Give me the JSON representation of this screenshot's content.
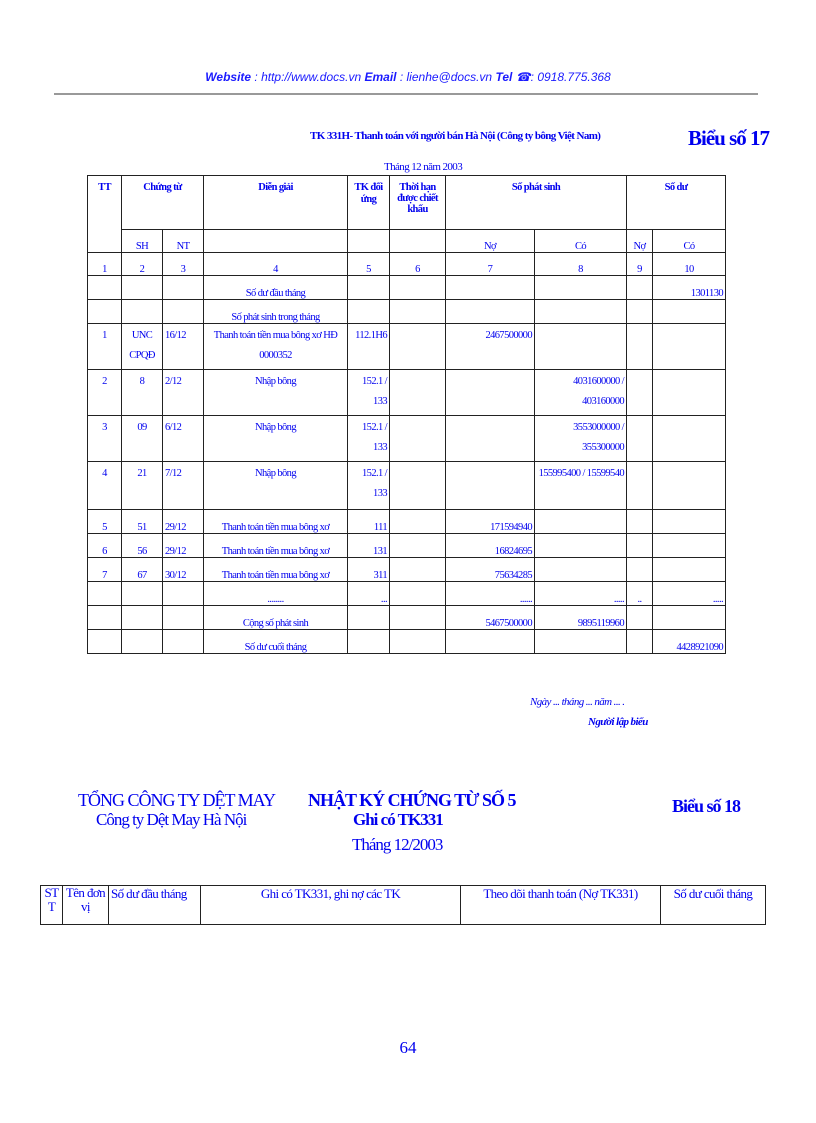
{
  "header": {
    "website_label": "Website",
    "website": "http://www.docs.vn",
    "email_label": "Email",
    "email": "lienhe@docs.vn",
    "tel_label": "Tel",
    "tel": "0918.775.368"
  },
  "form17": {
    "title": "TK 331H- Thanh toán với người bán Hà Nội (Công ty bông Việt Nam)",
    "form_no": "Biểu số 17",
    "period": "Tháng 12 năm 2003",
    "headers": {
      "tt": "TT",
      "chung_tu": "Chứng từ",
      "dien_giai": "Diễn giải",
      "tk_doi_ung": "TK đối ứng",
      "thoi_han": "Thời hạn được chiết khấu",
      "so_phat_sinh": "Số phát sinh",
      "so_du": "Số dư",
      "sh": "SH",
      "nt": "NT",
      "no": "Nợ",
      "co": "Có",
      "no2": "Nợ",
      "co2": "Có"
    },
    "col_numbers": [
      "1",
      "2",
      "3",
      "4",
      "5",
      "6",
      "7",
      "8",
      "9",
      "10"
    ],
    "rows": [
      {
        "tt": "",
        "sh": "",
        "nt": "",
        "desc": "Số dư đầu tháng",
        "tk": "",
        "no": "",
        "co": "",
        "du_no": "",
        "du_co": "1301130"
      },
      {
        "tt": "",
        "sh": "",
        "nt": "",
        "desc": "Số phát sinh trong tháng",
        "tk": "",
        "no": "",
        "co": "",
        "du_no": "",
        "du_co": ""
      },
      {
        "tt": "1",
        "sh": "UNC CPQĐ",
        "nt": "16/12",
        "desc": "Thanh toán tiền mua bông xơ HĐ 0000352",
        "tk": "112.1H6",
        "no": "2467500000",
        "co": "",
        "du_no": "",
        "du_co": ""
      },
      {
        "tt": "2",
        "sh": "8",
        "nt": "2/12",
        "desc": "Nhập bông",
        "tk": "152.1 / 133",
        "no": "",
        "co": "4031600000 / 403160000",
        "du_no": "",
        "du_co": ""
      },
      {
        "tt": "3",
        "sh": "09",
        "nt": "6/12",
        "desc": "Nhập bông",
        "tk": "152.1 / 133",
        "no": "",
        "co": "3553000000 / 355300000",
        "du_no": "",
        "du_co": ""
      },
      {
        "tt": "4",
        "sh": "21",
        "nt": "7/12",
        "desc": "Nhập bông",
        "tk": "152.1 / 133",
        "no": "",
        "co": "155995400 / 15599540",
        "du_no": "",
        "du_co": ""
      },
      {
        "tt": "5",
        "sh": "51",
        "nt": "29/12",
        "desc": "Thanh toán tiền mua bông xơ",
        "tk": "111",
        "no": "171594940",
        "co": "",
        "du_no": "",
        "du_co": ""
      },
      {
        "tt": "6",
        "sh": "56",
        "nt": "29/12",
        "desc": "Thanh toán tiền mua bông xơ",
        "tk": "131",
        "no": "16824695",
        "co": "",
        "du_no": "",
        "du_co": ""
      },
      {
        "tt": "7",
        "sh": "67",
        "nt": "30/12",
        "desc": "Thanh toán tiền mua bông xơ",
        "tk": "311",
        "no": "75634285",
        "co": "",
        "du_no": "",
        "du_co": ""
      },
      {
        "tt": "",
        "sh": "",
        "nt": "",
        "desc": "........",
        "tk": "...",
        "no": "......",
        "co": ".....",
        "du_no": "..",
        "du_co": "....."
      },
      {
        "tt": "",
        "sh": "",
        "nt": "",
        "desc": "Cộng số phát sinh",
        "tk": "",
        "no": "5467500000",
        "co": "9895119960",
        "du_no": "",
        "du_co": ""
      },
      {
        "tt": "",
        "sh": "",
        "nt": "",
        "desc": "Số dư cuối tháng",
        "tk": "",
        "no": "",
        "co": "",
        "du_no": "",
        "du_co": "4428921090"
      }
    ],
    "date_line": "Ngày ... tháng ... năm ... .",
    "signer": "Người lập biểu"
  },
  "form18": {
    "company": "TỔNG CÔNG TY DỆT MAY",
    "subcompany": "Công ty Dệt May Hà Nội",
    "title": "NHẬT KÝ CHỨNG TỪ SỐ 5",
    "subtitle": "Ghi có TK331",
    "period": "Tháng 12/2003",
    "form_no": "Biểu số 18",
    "headers": [
      "STT",
      "Tên đơn vị",
      "Số dư đầu tháng",
      "Ghi có TK331, ghi nợ các TK",
      "Theo dõi thanh toán (Nợ TK331)",
      "Số dư cuối tháng"
    ]
  },
  "page_number": "64"
}
